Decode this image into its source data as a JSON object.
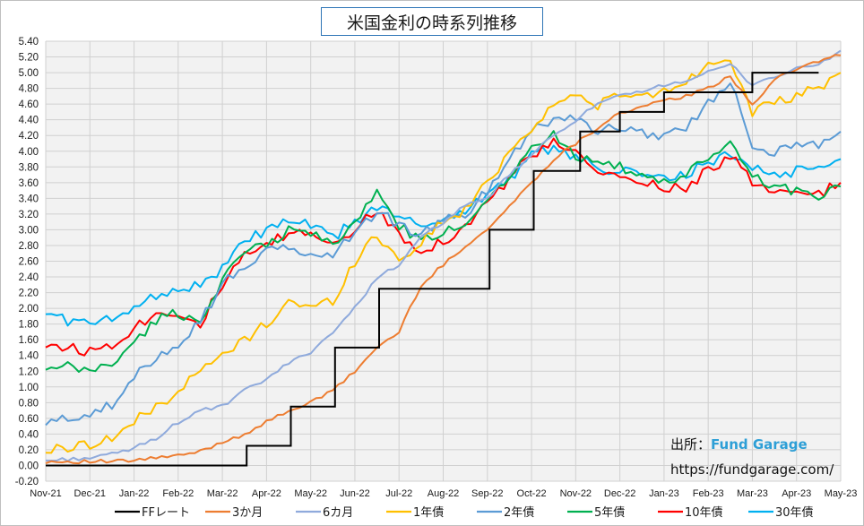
{
  "chart_data": {
    "type": "line",
    "title": "米国金利の時系列推移",
    "ylim": [
      -0.2,
      5.4
    ],
    "ytick_step": 0.2,
    "yticks": [
      "5.40",
      "5.20",
      "5.00",
      "4.80",
      "4.60",
      "4.40",
      "4.20",
      "4.00",
      "3.80",
      "3.60",
      "3.40",
      "3.20",
      "3.00",
      "2.80",
      "2.60",
      "2.40",
      "2.20",
      "2.00",
      "1.80",
      "1.60",
      "1.40",
      "1.20",
      "1.00",
      "0.80",
      "0.60",
      "0.40",
      "0.20",
      "0.00",
      "-0.20"
    ],
    "xticks": [
      "Nov-21",
      "Dec-21",
      "Jan-22",
      "Feb-22",
      "Mar-22",
      "Apr-22",
      "May-22",
      "Jun-22",
      "Jul-22",
      "Aug-22",
      "Sep-22",
      "Oct-22",
      "Nov-22",
      "Dec-22",
      "Jan-23",
      "Feb-23",
      "Mar-23",
      "Apr-23",
      "May-23"
    ],
    "grid": true,
    "legend_position": "bottom",
    "x_months": [
      0,
      0.5,
      1,
      1.5,
      2,
      2.5,
      3,
      3.5,
      4,
      4.5,
      5,
      5.5,
      6,
      6.5,
      7,
      7.5,
      8,
      8.5,
      9,
      9.5,
      10,
      10.5,
      11,
      11.5,
      12,
      12.5,
      13,
      13.5,
      14,
      14.5,
      15,
      15.5,
      16,
      16.5,
      17,
      17.5,
      18
    ],
    "series": [
      {
        "name": "FFレート",
        "color": "#000000",
        "step": true,
        "x": [
          0,
          4.55,
          5.55,
          6.55,
          7.55,
          9.05,
          10.05,
          11.05,
          12.1,
          13.0,
          14.0,
          15.4,
          16.0,
          17.5
        ],
        "values": [
          0.0,
          0.25,
          0.75,
          1.5,
          2.25,
          2.25,
          3.0,
          3.75,
          4.25,
          4.5,
          4.75,
          4.75,
          5.0,
          5.0
        ]
      },
      {
        "name": "3か月",
        "color": "#ed7d31",
        "values": [
          0.05,
          0.05,
          0.05,
          0.05,
          0.06,
          0.1,
          0.12,
          0.18,
          0.3,
          0.4,
          0.55,
          0.7,
          0.8,
          0.95,
          1.2,
          1.5,
          1.7,
          2.3,
          2.55,
          2.8,
          3.0,
          3.3,
          3.6,
          3.9,
          4.1,
          4.3,
          4.5,
          4.55,
          4.65,
          4.7,
          4.8,
          4.95,
          4.6,
          4.9,
          5.05,
          5.15,
          5.22
        ]
      },
      {
        "name": "6カ月",
        "color": "#8faadc",
        "values": [
          0.06,
          0.08,
          0.1,
          0.14,
          0.22,
          0.35,
          0.55,
          0.7,
          0.75,
          0.95,
          1.1,
          1.3,
          1.45,
          1.7,
          2.0,
          2.4,
          2.55,
          2.9,
          3.1,
          3.3,
          3.4,
          3.7,
          3.95,
          4.2,
          4.4,
          4.6,
          4.7,
          4.75,
          4.85,
          4.9,
          5.0,
          5.1,
          4.85,
          4.95,
          5.05,
          5.1,
          5.28
        ]
      },
      {
        "name": "1年債",
        "color": "#ffc000",
        "values": [
          0.18,
          0.23,
          0.28,
          0.35,
          0.55,
          0.75,
          0.95,
          1.2,
          1.4,
          1.6,
          1.8,
          2.1,
          2.0,
          2.1,
          2.6,
          2.95,
          2.6,
          2.85,
          3.1,
          3.25,
          3.6,
          4.0,
          4.3,
          4.6,
          4.7,
          4.6,
          4.7,
          4.7,
          4.75,
          4.9,
          5.1,
          5.2,
          4.5,
          4.6,
          4.7,
          4.8,
          5.0
        ]
      },
      {
        "name": "2年債",
        "color": "#5b9bd5",
        "values": [
          0.52,
          0.6,
          0.68,
          0.75,
          1.1,
          1.4,
          1.55,
          1.85,
          2.3,
          2.55,
          2.7,
          2.8,
          2.65,
          2.7,
          2.95,
          3.25,
          3.05,
          2.95,
          3.1,
          3.2,
          3.5,
          3.9,
          4.3,
          4.4,
          4.45,
          4.25,
          4.3,
          4.25,
          4.2,
          4.3,
          4.6,
          4.9,
          4.1,
          4.0,
          4.05,
          4.1,
          4.25
        ]
      },
      {
        "name": "5年債",
        "color": "#00b050",
        "values": [
          1.2,
          1.25,
          1.2,
          1.3,
          1.55,
          1.85,
          1.95,
          1.8,
          2.4,
          2.7,
          2.8,
          3.0,
          2.95,
          2.85,
          3.05,
          3.5,
          3.05,
          2.85,
          2.95,
          3.1,
          3.4,
          3.7,
          4.05,
          4.2,
          3.95,
          3.9,
          3.8,
          3.65,
          3.6,
          3.7,
          3.9,
          4.1,
          3.7,
          3.55,
          3.5,
          3.45,
          3.55
        ]
      },
      {
        "name": "10年債",
        "color": "#ff0000",
        "values": [
          1.55,
          1.5,
          1.45,
          1.55,
          1.75,
          1.95,
          1.95,
          1.8,
          2.3,
          2.65,
          2.8,
          2.95,
          2.95,
          2.85,
          3.0,
          3.25,
          2.95,
          2.75,
          2.85,
          3.05,
          3.35,
          3.65,
          3.95,
          4.1,
          3.95,
          3.75,
          3.65,
          3.6,
          3.55,
          3.55,
          3.75,
          3.95,
          3.6,
          3.45,
          3.45,
          3.45,
          3.6
        ]
      },
      {
        "name": "30年債",
        "color": "#00b0f0",
        "values": [
          1.95,
          1.85,
          1.8,
          1.85,
          2.05,
          2.15,
          2.25,
          2.3,
          2.5,
          2.85,
          3.0,
          3.1,
          3.05,
          2.9,
          3.1,
          3.3,
          3.15,
          3.05,
          3.15,
          3.25,
          3.45,
          3.65,
          3.95,
          4.05,
          3.9,
          3.8,
          3.75,
          3.7,
          3.65,
          3.7,
          3.85,
          3.95,
          3.8,
          3.7,
          3.75,
          3.8,
          3.9
        ]
      }
    ]
  },
  "watermark": {
    "line1_prefix": "出所：",
    "line1_brand": "Fund Garage",
    "line2": "https://fundgarage.com/"
  }
}
